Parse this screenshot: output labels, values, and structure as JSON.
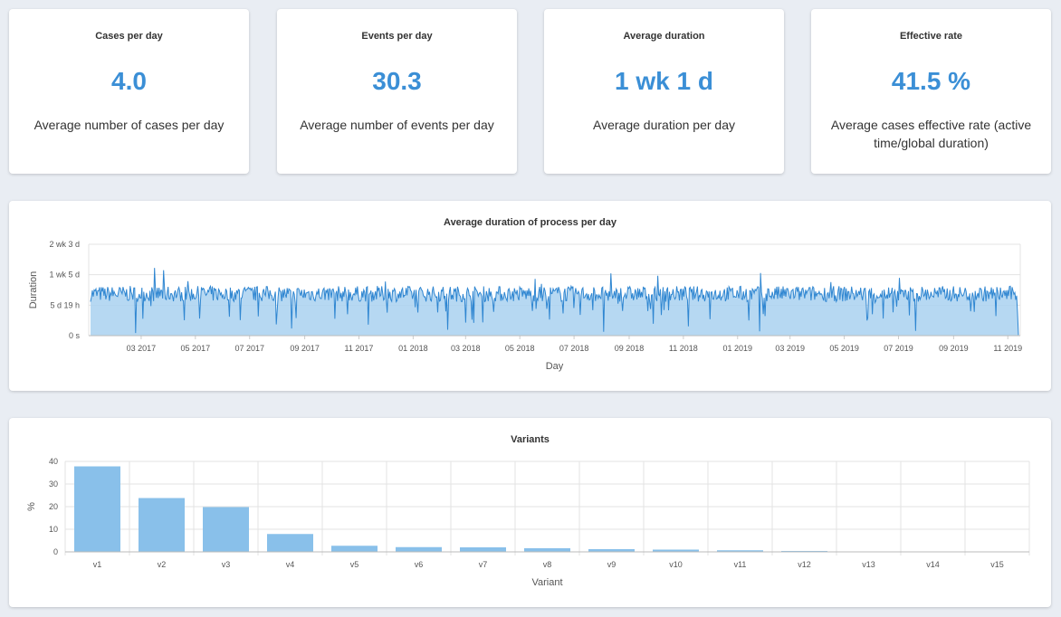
{
  "kpis": [
    {
      "title": "Cases per day",
      "value": "4.0",
      "subtitle": "Average number of cases per day"
    },
    {
      "title": "Events per day",
      "value": "30.3",
      "subtitle": "Average number of events per day"
    },
    {
      "title": "Average duration",
      "value": "1 wk 1 d",
      "subtitle": "Average duration per day"
    },
    {
      "title": "Effective rate",
      "value": "41.5 %",
      "subtitle": "Average cases effective rate (active time/global duration)"
    }
  ],
  "colors": {
    "accent": "#3b8fd6",
    "line": "#2f86d1",
    "area": "#a9d1f0",
    "bar": "#89c0ea"
  },
  "chart_data": [
    {
      "type": "area",
      "title": "Average duration of process per day",
      "xlabel": "Day",
      "ylabel": "Duration",
      "x_tick_labels": [
        "03 2017",
        "05 2017",
        "07 2017",
        "09 2017",
        "11 2017",
        "01 2018",
        "03 2018",
        "05 2018",
        "07 2018",
        "09 2018",
        "11 2018",
        "01 2019",
        "03 2019",
        "05 2019",
        "07 2019",
        "09 2019",
        "11 2019"
      ],
      "y_tick_labels": [
        "0 s",
        "5 d 19 h",
        "1 wk 5 d",
        "2 wk 3 d"
      ],
      "ylim_days": [
        0,
        17.5
      ],
      "x_range": [
        "2017-01-01",
        "2019-11-15"
      ],
      "series_summary": {
        "typical_days": 8.0,
        "spread_days": 1.5,
        "note": "daily values roughly 6–10 days with occasional dips near 0"
      },
      "grid": true
    },
    {
      "type": "bar",
      "title": "Variants",
      "xlabel": "Variant",
      "ylabel": "%",
      "categories": [
        "v1",
        "v2",
        "v3",
        "v4",
        "v5",
        "v6",
        "v7",
        "v8",
        "v9",
        "v10",
        "v11",
        "v12",
        "v13",
        "v14",
        "v15"
      ],
      "values": [
        37.8,
        23.8,
        19.8,
        7.9,
        2.7,
        2.1,
        2.0,
        1.6,
        1.2,
        1.0,
        0.7,
        0.4,
        0.2,
        0.1,
        0.1
      ],
      "ylim": [
        0,
        40
      ],
      "y_ticks": [
        0,
        10,
        20,
        30,
        40
      ],
      "grid": true
    }
  ]
}
